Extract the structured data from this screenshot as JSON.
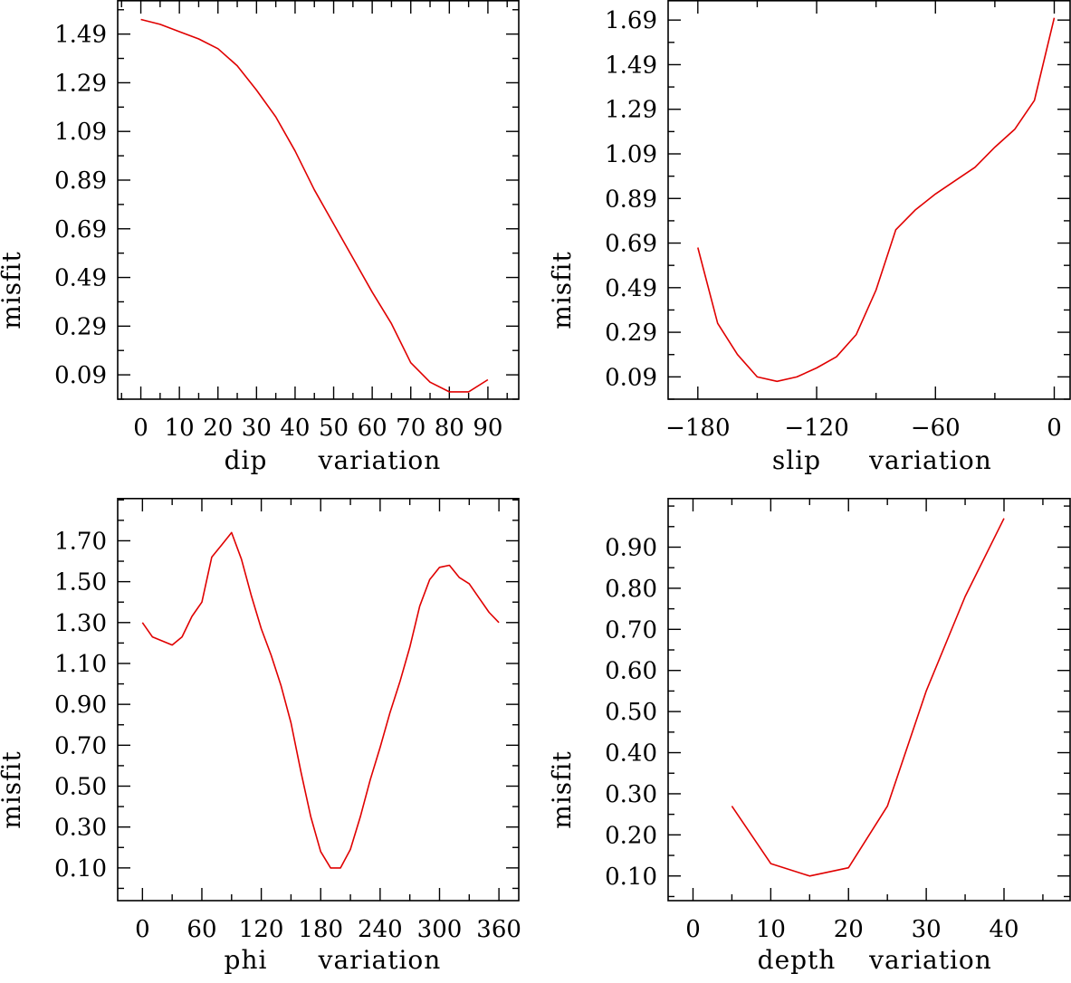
{
  "colors": {
    "line": "#e00000",
    "axes": "#000000",
    "background": "#ffffff"
  },
  "chart_data": [
    {
      "type": "line",
      "xlabel": "dip",
      "xlabel2": "variation",
      "ylabel": "misfit",
      "xlim": [
        -6,
        98
      ],
      "ylim": [
        -0.01,
        1.63
      ],
      "xticks": [
        0,
        10,
        20,
        30,
        40,
        50,
        60,
        70,
        80,
        90
      ],
      "xtick_labels": [
        "0",
        "10",
        "20",
        "30",
        "40",
        "50",
        "60",
        "70",
        "80",
        "90"
      ],
      "yticks": [
        0.09,
        0.29,
        0.49,
        0.69,
        0.89,
        1.09,
        1.29,
        1.49
      ],
      "ytick_labels": [
        "0.09",
        "0.29",
        "0.49",
        "0.69",
        "0.89",
        "1.09",
        "1.29",
        "1.49"
      ],
      "x": [
        0,
        5,
        10,
        15,
        20,
        25,
        30,
        35,
        40,
        45,
        50,
        55,
        60,
        65,
        70,
        75,
        80,
        85,
        90
      ],
      "y": [
        1.55,
        1.53,
        1.5,
        1.47,
        1.43,
        1.36,
        1.26,
        1.15,
        1.01,
        0.85,
        0.71,
        0.57,
        0.43,
        0.3,
        0.14,
        0.06,
        0.02,
        0.02,
        0.07
      ]
    },
    {
      "type": "line",
      "xlabel": "slip",
      "xlabel2": "variation",
      "ylabel": "misfit",
      "xlim": [
        -195,
        8
      ],
      "ylim": [
        -0.01,
        1.78
      ],
      "xticks": [
        -180,
        -120,
        -60,
        0
      ],
      "xtick_labels": [
        "−180",
        "−120",
        "−60",
        "0"
      ],
      "yticks": [
        0.09,
        0.29,
        0.49,
        0.69,
        0.89,
        1.09,
        1.29,
        1.49,
        1.69
      ],
      "ytick_labels": [
        "0.09",
        "0.29",
        "0.49",
        "0.69",
        "0.89",
        "1.09",
        "1.29",
        "1.49",
        "1.69"
      ],
      "x": [
        -180,
        -170,
        -160,
        -150,
        -140,
        -130,
        -120,
        -110,
        -100,
        -90,
        -80,
        -70,
        -60,
        -50,
        -40,
        -30,
        -20,
        -10,
        0
      ],
      "y": [
        0.67,
        0.33,
        0.19,
        0.09,
        0.07,
        0.09,
        0.13,
        0.18,
        0.28,
        0.48,
        0.75,
        0.84,
        0.91,
        0.97,
        1.03,
        1.12,
        1.2,
        1.33,
        1.7
      ]
    },
    {
      "type": "line",
      "xlabel": "phi",
      "xlabel2": "variation",
      "ylabel": "misfit",
      "xlim": [
        -25,
        380
      ],
      "ylim": [
        -0.06,
        1.91
      ],
      "xticks": [
        0,
        60,
        120,
        180,
        240,
        300,
        360
      ],
      "xtick_labels": [
        "0",
        "60",
        "120",
        "180",
        "240",
        "300",
        "360"
      ],
      "yticks": [
        0.1,
        0.3,
        0.5,
        0.7,
        0.9,
        1.1,
        1.3,
        1.5,
        1.7
      ],
      "ytick_labels": [
        "0.10",
        "0.30",
        "0.50",
        "0.70",
        "0.90",
        "1.10",
        "1.30",
        "1.50",
        "1.70"
      ],
      "x": [
        0,
        10,
        30,
        40,
        50,
        60,
        70,
        80,
        90,
        100,
        110,
        120,
        130,
        140,
        150,
        160,
        170,
        180,
        190,
        200,
        210,
        220,
        230,
        240,
        250,
        260,
        270,
        280,
        290,
        300,
        310,
        320,
        330,
        340,
        350,
        360
      ],
      "y": [
        1.3,
        1.23,
        1.19,
        1.23,
        1.33,
        1.4,
        1.62,
        1.68,
        1.74,
        1.61,
        1.43,
        1.27,
        1.14,
        0.99,
        0.81,
        0.57,
        0.35,
        0.18,
        0.1,
        0.1,
        0.19,
        0.35,
        0.53,
        0.69,
        0.86,
        1.01,
        1.18,
        1.38,
        1.51,
        1.57,
        1.58,
        1.52,
        1.49,
        1.42,
        1.35,
        1.3
      ]
    },
    {
      "type": "line",
      "xlabel": "depth",
      "xlabel2": "variation",
      "ylabel": "misfit",
      "xlim": [
        -3.2,
        48.5
      ],
      "ylim": [
        0.04,
        1.02
      ],
      "xticks": [
        0,
        10,
        20,
        30,
        40
      ],
      "xtick_labels": [
        "0",
        "10",
        "20",
        "30",
        "40"
      ],
      "yticks": [
        0.1,
        0.2,
        0.3,
        0.4,
        0.5,
        0.6,
        0.7,
        0.8,
        0.9
      ],
      "ytick_labels": [
        "0.10",
        "0.20",
        "0.30",
        "0.40",
        "0.50",
        "0.60",
        "0.70",
        "0.80",
        "0.90"
      ],
      "x": [
        5,
        10,
        15,
        20,
        25,
        30,
        35,
        40
      ],
      "y": [
        0.27,
        0.13,
        0.1,
        0.12,
        0.27,
        0.55,
        0.78,
        0.97
      ]
    }
  ]
}
